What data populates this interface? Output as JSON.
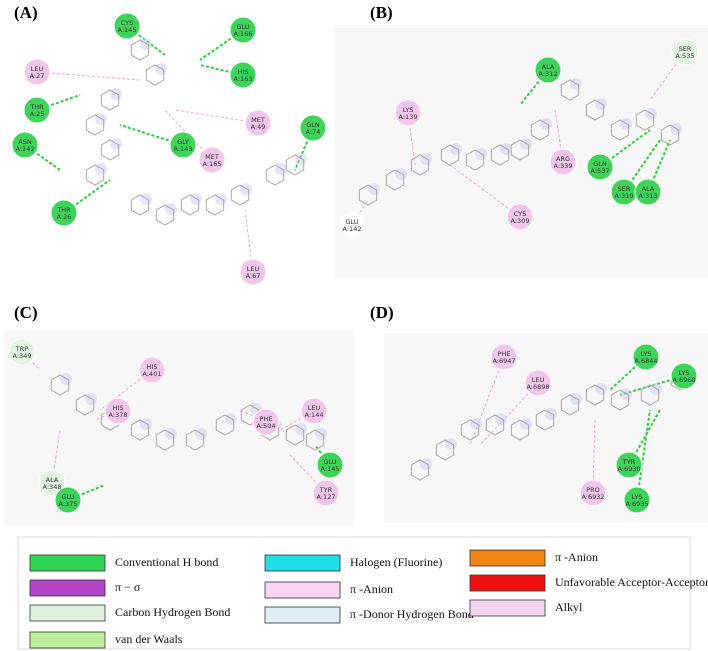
{
  "panels": [
    {
      "label": "(A)",
      "residues": [
        {
          "lines": [
            "LEU",
            "A:27"
          ],
          "color": "#f2c6ec"
        },
        {
          "lines": [
            "CYS",
            "A:145"
          ],
          "color": "#3ed45a"
        },
        {
          "lines": [
            "GLU",
            "A:166"
          ],
          "color": "#3ed45a"
        },
        {
          "lines": [
            "HIS",
            "A:163"
          ],
          "color": "#3ed45a"
        },
        {
          "lines": [
            "THR",
            "A:25"
          ],
          "color": "#3ed45a"
        },
        {
          "lines": [
            "ASN",
            "A:142"
          ],
          "color": "#3ed45a"
        },
        {
          "lines": [
            "GLY",
            "A:143"
          ],
          "color": "#3ed45a"
        },
        {
          "lines": [
            "MET",
            "A:165"
          ],
          "color": "#f2c6ec"
        },
        {
          "lines": [
            "MET",
            "A:49"
          ],
          "color": "#f2c6ec"
        },
        {
          "lines": [
            "GLN",
            "A:74"
          ],
          "color": "#3ed45a"
        },
        {
          "lines": [
            "THR",
            "A:26"
          ],
          "color": "#3ed45a"
        },
        {
          "lines": [
            "LEU",
            "A:67"
          ],
          "color": "#f2c6ec"
        }
      ]
    },
    {
      "label": "(B)",
      "residues": [
        {
          "lines": [
            "ALA",
            "A:312"
          ],
          "color": "#3ed45a"
        },
        {
          "lines": [
            "SER",
            "A:535"
          ],
          "color": "#e2f4e2"
        },
        {
          "lines": [
            "LYS",
            "A:139"
          ],
          "color": "#f2c6ec"
        },
        {
          "lines": [
            "GLN",
            "A:537"
          ],
          "color": "#3ed45a"
        },
        {
          "lines": [
            "SER",
            "A:310"
          ],
          "color": "#3ed45a"
        },
        {
          "lines": [
            "ALA",
            "A:313"
          ],
          "color": "#3ed45a"
        },
        {
          "lines": [
            "ARG",
            "A:339"
          ],
          "color": "#f2c6ec"
        },
        {
          "lines": [
            "CYS",
            "A:309"
          ],
          "color": "#f2c6ec"
        },
        {
          "lines": [
            "GLU",
            "A:142"
          ],
          "color": "#ffffff"
        }
      ]
    },
    {
      "label": "(C)",
      "residues": [
        {
          "lines": [
            "TRP",
            "A:349"
          ],
          "color": "#e2f4e2"
        },
        {
          "lines": [
            "HIS",
            "A:401"
          ],
          "color": "#f2c6ec"
        },
        {
          "lines": [
            "HIS",
            "A:378"
          ],
          "color": "#f2c6ec"
        },
        {
          "lines": [
            "PHE",
            "A:504"
          ],
          "color": "#f2c6ec"
        },
        {
          "lines": [
            "LEU",
            "A:144"
          ],
          "color": "#f2c6ec"
        },
        {
          "lines": [
            "ALA",
            "A:348"
          ],
          "color": "#e2f4e2"
        },
        {
          "lines": [
            "GLU",
            "A:375"
          ],
          "color": "#3ed45a"
        },
        {
          "lines": [
            "GLU",
            "A:145"
          ],
          "color": "#3ed45a"
        },
        {
          "lines": [
            "TYR",
            "A:127"
          ],
          "color": "#f2c6ec"
        }
      ]
    },
    {
      "label": "(D)",
      "residues": [
        {
          "lines": [
            "PHE",
            "A:6947"
          ],
          "color": "#f2c6ec"
        },
        {
          "lines": [
            "LEU",
            "A:6898"
          ],
          "color": "#f2c6ec"
        },
        {
          "lines": [
            "LYS",
            "A:6844"
          ],
          "color": "#3ed45a"
        },
        {
          "lines": [
            "LYS",
            "A:6968"
          ],
          "color": "#3ed45a"
        },
        {
          "lines": [
            "PRO",
            "A:6932"
          ],
          "color": "#f2c6ec"
        },
        {
          "lines": [
            "TYR",
            "A:6930"
          ],
          "color": "#3ed45a"
        },
        {
          "lines": [
            "LYS",
            "A:6935"
          ],
          "color": "#3ed45a"
        }
      ]
    }
  ],
  "legend": [
    {
      "label": "Conventional H bond",
      "color": "#33d455"
    },
    {
      "label": "π − σ",
      "color": "#b344c8"
    },
    {
      "label": "Carbon Hydrogen Bond",
      "color": "#def3de"
    },
    {
      "label": "van der Waals",
      "color": "#bdee9c"
    },
    {
      "label": "Halogen (Fluorine)",
      "color": "#22dce6"
    },
    {
      "label": "π -Anion",
      "color": "#fbd2f3"
    },
    {
      "label": "π -Donor Hydrogen Bond",
      "color": "#dcf0f2"
    },
    {
      "label": "π -Anion",
      "color": "#f28414"
    },
    {
      "label": "Unfavorable Acceptor-Acceptor",
      "color": "#ee1111"
    },
    {
      "label": "Alkyl",
      "color": "#f3d4ef"
    }
  ]
}
